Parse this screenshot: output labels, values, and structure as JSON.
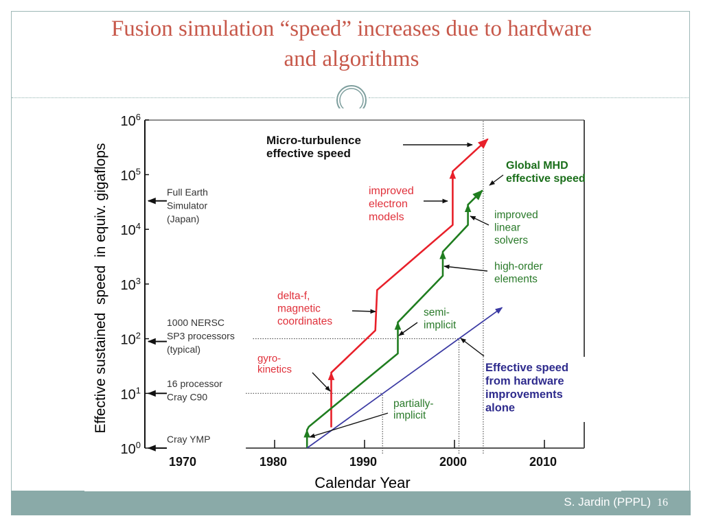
{
  "slide": {
    "title_lines": [
      "Fusion simulation “speed” increases due to hardware",
      "and algorithms"
    ],
    "footer_author": "S. Jardin (PPPL)",
    "page_number": "16",
    "colors": {
      "title": "#c7584a",
      "frame": "#9db7b6",
      "footer_bar": "#8aaaa8",
      "footer_text": "#ffffff"
    },
    "ornament_icon": "double-circle-ornament"
  },
  "chart_data": {
    "type": "line",
    "title": "",
    "xlabel": "Calendar Year",
    "ylabel": "Effective sustained  speed  in equiv. gigaflops",
    "y_scale": "log",
    "ylim": [
      1,
      1000000
    ],
    "xlim": [
      1976.8,
      2014.4
    ],
    "x_ticks": [
      1980,
      1990,
      2000,
      2010
    ],
    "x_tick_labels": [
      "1980",
      "1990",
      "2000",
      "2010"
    ],
    "x_axis_break": {
      "label": "1970",
      "note": "axis broken between 1970 and 1980"
    },
    "y_ticks": [
      {
        "exp": 0,
        "base": "10",
        "sup": "0"
      },
      {
        "exp": 1,
        "base": "10",
        "sup": "1"
      },
      {
        "exp": 2,
        "base": "10",
        "sup": "2"
      },
      {
        "exp": 3,
        "base": "10",
        "sup": "3"
      },
      {
        "exp": 4,
        "base": "10",
        "sup": "4"
      },
      {
        "exp": 5,
        "base": "10",
        "sup": "5"
      },
      {
        "exp": 6,
        "base": "10",
        "sup": "6"
      }
    ],
    "grid": false,
    "series": [
      {
        "name": "Micro-turbulence effective speed",
        "color": "#e8202a",
        "points_year_log10": [
          [
            1986.3,
            0.38
          ],
          [
            1986.3,
            1.38
          ],
          [
            1991.2,
            2.15
          ],
          [
            1991.4,
            2.89
          ],
          [
            1999.8,
            4.08
          ],
          [
            1999.8,
            5.06
          ],
          [
            2003.7,
            5.65
          ]
        ]
      },
      {
        "name": "Global MHD effective speed",
        "color": "#1f7d1f",
        "points_year_log10": [
          [
            1983.6,
            0.0
          ],
          [
            1983.6,
            0.33
          ],
          [
            1983.8,
            0.39
          ],
          [
            1993.7,
            1.73
          ],
          [
            1993.7,
            2.3
          ],
          [
            1998.7,
            3.15
          ],
          [
            1998.7,
            3.59
          ],
          [
            2001.5,
            4.08
          ],
          [
            2001.5,
            4.45
          ],
          [
            2003.1,
            4.71
          ]
        ]
      },
      {
        "name": "Effective speed from hardware improvements alone",
        "color": "#3b3aa3",
        "points_year_log10": [
          [
            1983.6,
            0.0
          ],
          [
            2005.3,
            2.57
          ]
        ]
      }
    ],
    "reference_lines": [
      {
        "kind": "horizontal",
        "log10": 2,
        "from_year": 1977.6,
        "to_year": 2000.5
      },
      {
        "kind": "horizontal",
        "log10": 1,
        "from_year": 1976.8,
        "to_year": 1992.0
      },
      {
        "kind": "vertical",
        "year": 1992.0,
        "from_log10": -0.1,
        "to_log10": 1
      },
      {
        "kind": "vertical",
        "year": 2000.5,
        "from_log10": -0.1,
        "to_log10": 2
      },
      {
        "kind": "vertical",
        "year": 2003.2,
        "from_log10": -0.1,
        "to_log10": 6
      }
    ],
    "machine_markers": [
      {
        "lines": [
          "Full Earth",
          "Simulator",
          "(Japan)"
        ],
        "log10": 4.52
      },
      {
        "lines": [
          "1000 NERSC",
          "SP3 processors",
          "(typical)"
        ],
        "log10": 1.95
      },
      {
        "lines": [
          "16 processor",
          "Cray C90"
        ],
        "log10": 1.0
      },
      {
        "lines": [
          "Cray YMP"
        ],
        "log10": 0.0
      }
    ],
    "annotations": [
      {
        "id": "micro-turbulence",
        "lines": [
          "Micro-turbulence",
          "effective speed"
        ],
        "color": "#111111",
        "bold": true
      },
      {
        "id": "improved-electron-models",
        "lines": [
          "improved",
          "electron",
          "models"
        ],
        "color": "#e0303a",
        "bold": false
      },
      {
        "id": "global-mhd",
        "lines": [
          "Global MHD",
          "effective speed"
        ],
        "color": "#1a6e1a",
        "bold": true
      },
      {
        "id": "improved-linear-solvers",
        "lines": [
          "improved",
          "linear",
          "solvers"
        ],
        "color": "#2a7a2a",
        "bold": false
      },
      {
        "id": "high-order-elements",
        "lines": [
          "high-order",
          "elements"
        ],
        "color": "#2a7a2a",
        "bold": false
      },
      {
        "id": "delta-f",
        "lines": [
          "delta-f,",
          "magnetic",
          "coordinates"
        ],
        "color": "#e0303a",
        "bold": false
      },
      {
        "id": "semi-implicit",
        "lines": [
          "semi-",
          "implicit"
        ],
        "color": "#2a7a2a",
        "bold": false
      },
      {
        "id": "gyro-kinetics",
        "lines": [
          "gyro-",
          "kinetics"
        ],
        "color": "#e0303a",
        "bold": false
      },
      {
        "id": "partially-implicit",
        "lines": [
          "partially-",
          "implicit"
        ],
        "color": "#2a7a2a",
        "bold": false
      },
      {
        "id": "hardware-alone",
        "lines": [
          "Effective speed",
          "from hardware",
          "improvements",
          "alone"
        ],
        "color": "#2e2b8d",
        "bold": true
      }
    ]
  }
}
